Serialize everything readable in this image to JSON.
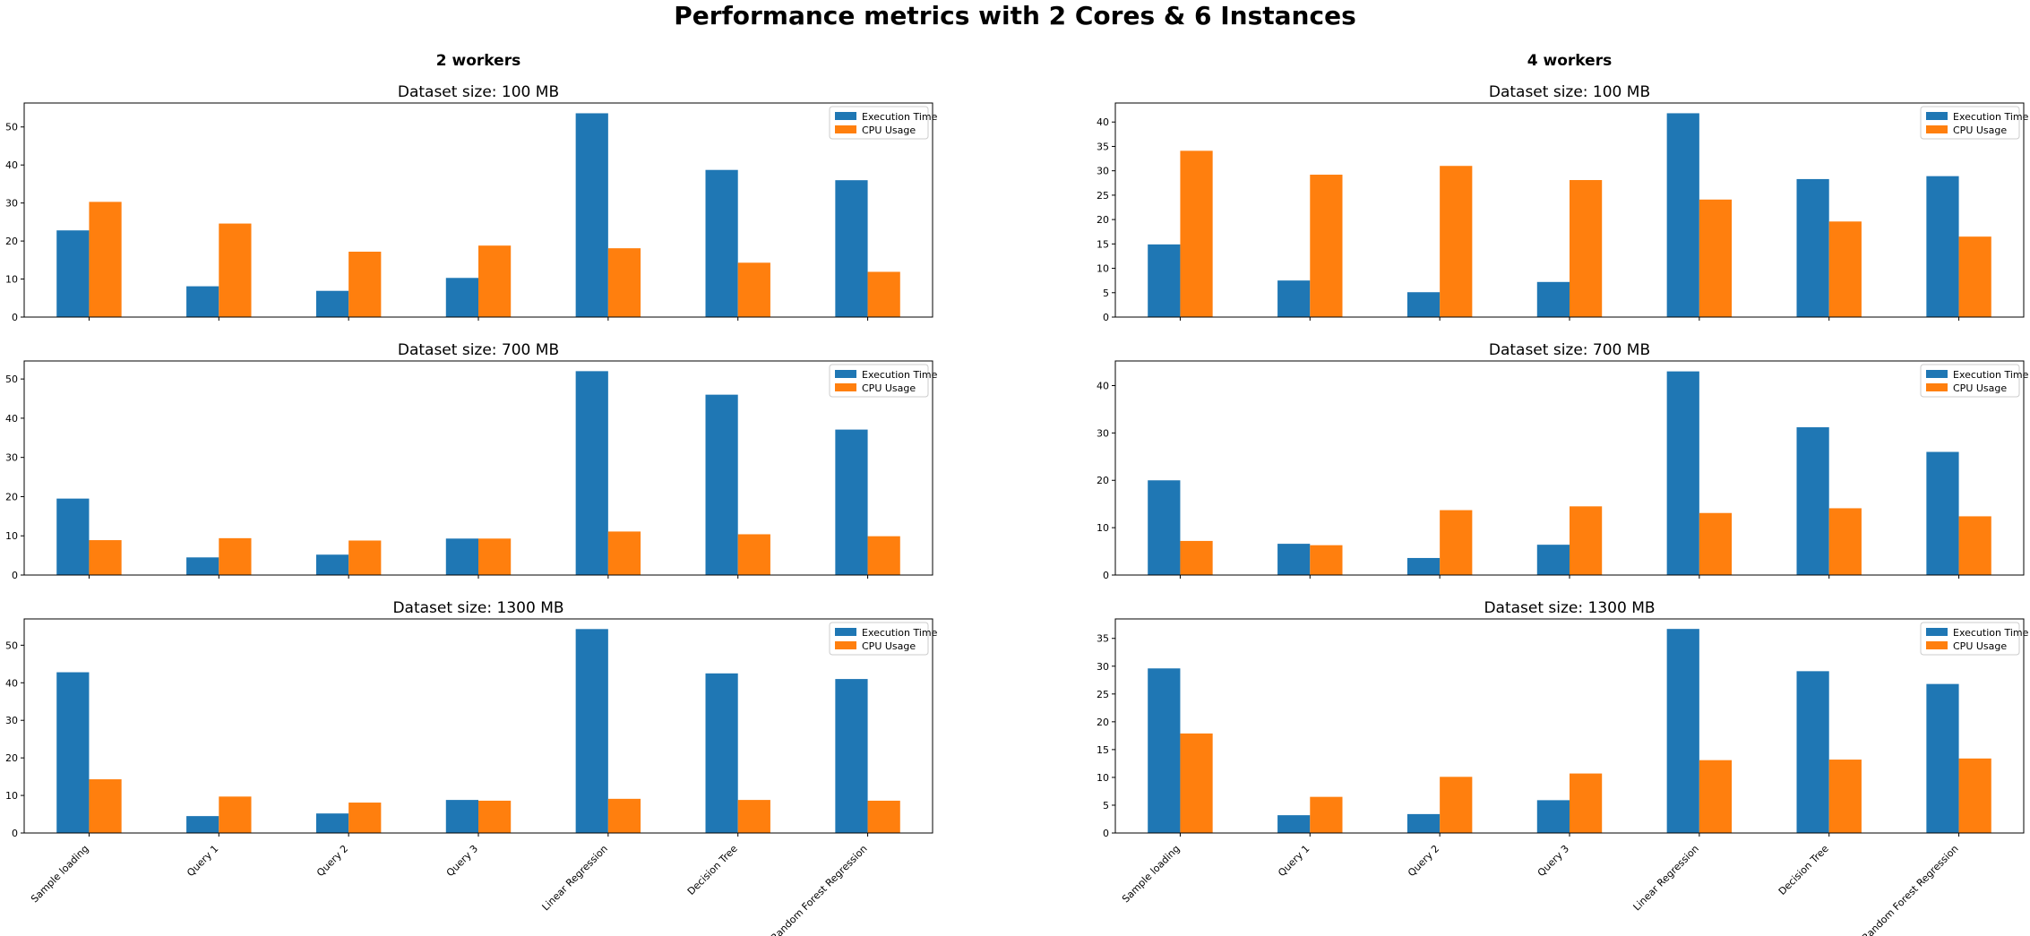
{
  "figure": {
    "title": "Performance metrics with 2 Cores & 6 Instances",
    "columns": [
      "2 workers",
      "4 workers"
    ]
  },
  "colors": {
    "execution_time": "#1f77b4",
    "cpu_usage": "#ff7f0e"
  },
  "chart_data": [
    {
      "type": "bar",
      "column": 0,
      "row": 0,
      "title": "Dataset size: 100 MB",
      "categories": [
        "Sample loading",
        "Query 1",
        "Query 2",
        "Query 3",
        "Linear Regression",
        "Decision Tree",
        "Random Forest Regression"
      ],
      "series": [
        {
          "name": "Execution Time",
          "values": [
            22.8,
            8.1,
            6.9,
            10.3,
            53.6,
            38.7,
            36.0
          ]
        },
        {
          "name": "CPU Usage",
          "values": [
            30.3,
            24.6,
            17.2,
            18.8,
            18.1,
            14.3,
            11.9
          ]
        }
      ],
      "ylim": [
        0,
        56.3
      ],
      "yticks": [
        0,
        10,
        20,
        30,
        40,
        50
      ],
      "legend": "top-right",
      "grid": false
    },
    {
      "type": "bar",
      "column": 0,
      "row": 1,
      "title": "Dataset size: 700 MB",
      "categories": [
        "Sample loading",
        "Query 1",
        "Query 2",
        "Query 3",
        "Linear Regression",
        "Decision Tree",
        "Random Forest Regression"
      ],
      "series": [
        {
          "name": "Execution Time",
          "values": [
            19.5,
            4.5,
            5.2,
            9.3,
            52.0,
            46.0,
            37.1
          ]
        },
        {
          "name": "CPU Usage",
          "values": [
            8.9,
            9.4,
            8.8,
            9.3,
            11.1,
            10.4,
            9.9
          ]
        }
      ],
      "ylim": [
        0,
        54.6
      ],
      "yticks": [
        0,
        10,
        20,
        30,
        40,
        50
      ],
      "legend": "top-right",
      "grid": false
    },
    {
      "type": "bar",
      "column": 0,
      "row": 2,
      "title": "Dataset size: 1300 MB",
      "categories": [
        "Sample loading",
        "Query 1",
        "Query 2",
        "Query 3",
        "Linear Regression",
        "Decision Tree",
        "Random Forest Regression"
      ],
      "series": [
        {
          "name": "Execution Time",
          "values": [
            42.8,
            4.5,
            5.2,
            8.8,
            54.3,
            42.5,
            41.0
          ]
        },
        {
          "name": "CPU Usage",
          "values": [
            14.3,
            9.7,
            8.1,
            8.6,
            9.1,
            8.8,
            8.6
          ]
        }
      ],
      "ylim": [
        0,
        57.0
      ],
      "yticks": [
        0,
        10,
        20,
        30,
        40,
        50
      ],
      "legend": "top-right",
      "grid": false
    },
    {
      "type": "bar",
      "column": 1,
      "row": 0,
      "title": "Dataset size: 100 MB",
      "categories": [
        "Sample loading",
        "Query 1",
        "Query 2",
        "Query 3",
        "Linear Regression",
        "Decision Tree",
        "Random Forest Regression"
      ],
      "series": [
        {
          "name": "Execution Time",
          "values": [
            14.9,
            7.5,
            5.1,
            7.2,
            41.8,
            28.3,
            28.9
          ]
        },
        {
          "name": "CPU Usage",
          "values": [
            34.1,
            29.2,
            31.0,
            28.1,
            24.1,
            19.6,
            16.5
          ]
        }
      ],
      "ylim": [
        0,
        43.9
      ],
      "yticks": [
        0,
        5,
        10,
        15,
        20,
        25,
        30,
        35,
        40
      ],
      "legend": "top-right",
      "grid": false
    },
    {
      "type": "bar",
      "column": 1,
      "row": 1,
      "title": "Dataset size: 700 MB",
      "categories": [
        "Sample loading",
        "Query 1",
        "Query 2",
        "Query 3",
        "Linear Regression",
        "Decision Tree",
        "Random Forest Regression"
      ],
      "series": [
        {
          "name": "Execution Time",
          "values": [
            20.0,
            6.6,
            3.6,
            6.4,
            43.0,
            31.2,
            26.0
          ]
        },
        {
          "name": "CPU Usage",
          "values": [
            7.2,
            6.3,
            13.7,
            14.5,
            13.1,
            14.1,
            12.4
          ]
        }
      ],
      "ylim": [
        0,
        45.2
      ],
      "yticks": [
        0,
        10,
        20,
        30,
        40
      ],
      "legend": "top-right",
      "grid": false
    },
    {
      "type": "bar",
      "column": 1,
      "row": 2,
      "title": "Dataset size: 1300 MB",
      "categories": [
        "Sample loading",
        "Query 1",
        "Query 2",
        "Query 3",
        "Linear Regression",
        "Decision Tree",
        "Random Forest Regression"
      ],
      "series": [
        {
          "name": "Execution Time",
          "values": [
            29.6,
            3.2,
            3.4,
            5.9,
            36.7,
            29.1,
            26.8
          ]
        },
        {
          "name": "CPU Usage",
          "values": [
            17.9,
            6.5,
            10.1,
            10.7,
            13.1,
            13.2,
            13.4
          ]
        }
      ],
      "ylim": [
        0,
        38.5
      ],
      "yticks": [
        0,
        5,
        10,
        15,
        20,
        25,
        30,
        35
      ],
      "legend": "top-right",
      "grid": false
    }
  ]
}
